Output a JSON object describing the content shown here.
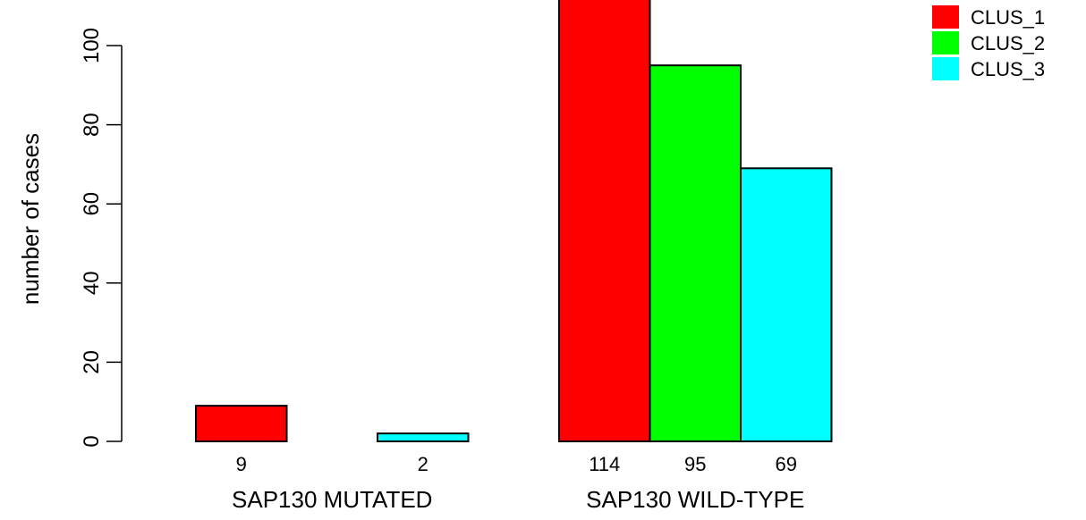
{
  "chart_data": {
    "type": "bar",
    "ylabel": "number of cases",
    "ylim": [
      0,
      110
    ],
    "yticks": [
      0,
      20,
      40,
      60,
      80,
      100
    ],
    "groups": [
      {
        "label": "SAP130 MUTATED",
        "values": [
          9,
          0,
          2
        ],
        "counts": [
          "9",
          "",
          "2"
        ]
      },
      {
        "label": "SAP130 WILD-TYPE",
        "values": [
          114,
          95,
          69
        ],
        "counts": [
          "114",
          "95",
          "69"
        ]
      }
    ],
    "series": [
      {
        "name": "CLUS_1",
        "color": "#ff0000"
      },
      {
        "name": "CLUS_2",
        "color": "#00ff00"
      },
      {
        "name": "CLUS_3",
        "color": "#00ffff"
      }
    ],
    "legend_position": "top-right",
    "grid": false
  }
}
